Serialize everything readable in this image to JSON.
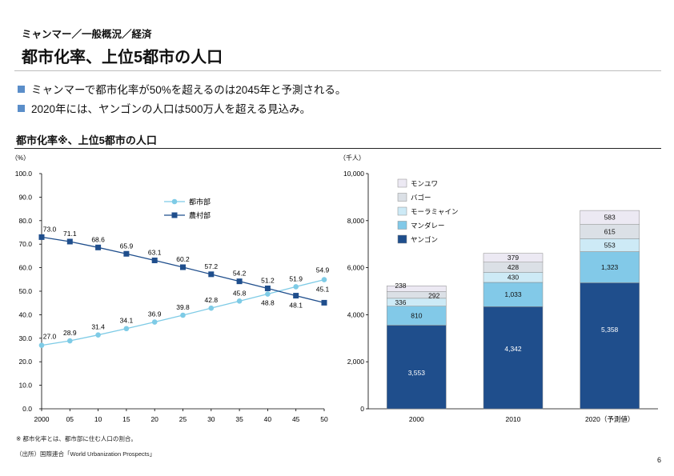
{
  "header": {
    "breadcrumb": "ミャンマー／一般概況／経済",
    "title": "都市化率、上位5都市の人口"
  },
  "bullets": [
    "ミャンマーで都市化率が50%を超えるのは2045年と予測される。",
    "2020年には、ヤンゴンの人口は500万人を超える見込み。"
  ],
  "section_title": "都市化率※、上位5都市の人口",
  "colors": {
    "urban": "#7ecbe6",
    "rural": "#1f4e8c",
    "bullet": "#5b8ec9",
    "yangon": "#1f4e8c",
    "mandalay": "#82c9e8",
    "mawlamyine": "#cdeaf6",
    "bago": "#dbe0e6",
    "monywa": "#ece9f3"
  },
  "chart_data": [
    {
      "type": "line",
      "title": "都市化率",
      "unit_label": "（%）",
      "x": [
        2000,
        2005,
        2010,
        2015,
        2020,
        2025,
        2030,
        2035,
        2040,
        2045,
        2050
      ],
      "xtick_labels": [
        "2000",
        "05",
        "10",
        "15",
        "20",
        "25",
        "30",
        "35",
        "40",
        "45",
        "50"
      ],
      "ylim": [
        0,
        100
      ],
      "ytick_labels": [
        "0.0",
        "10.0",
        "20.0",
        "30.0",
        "40.0",
        "50.0",
        "60.0",
        "70.0",
        "80.0",
        "90.0",
        "100.0"
      ],
      "series": [
        {
          "name": "都市部",
          "values": [
            27.0,
            28.9,
            31.4,
            34.1,
            36.9,
            39.8,
            42.8,
            45.8,
            48.8,
            51.9,
            54.9
          ],
          "labels": [
            "27.0",
            "28.9",
            "31.4",
            "34.1",
            "36.9",
            "39.8",
            "42.8",
            "45.8",
            "48.8",
            "51.9",
            "54.9"
          ]
        },
        {
          "name": "農村部",
          "values": [
            73.0,
            71.1,
            68.6,
            65.9,
            63.1,
            60.2,
            57.2,
            54.2,
            51.2,
            48.1,
            45.1
          ],
          "labels": [
            "73.0",
            "71.1",
            "68.6",
            "65.9",
            "63.1",
            "60.2",
            "57.2",
            "54.2",
            "51.2",
            "48.1",
            "45.1"
          ]
        }
      ],
      "legend_position": "top-right"
    },
    {
      "type": "bar",
      "stacked": true,
      "title": "上位5都市の人口",
      "unit_label": "（千人）",
      "categories": [
        "2000",
        "2010",
        "2020（予測値）"
      ],
      "ylim": [
        0,
        10000
      ],
      "ytick_labels": [
        "0",
        "2,000",
        "4,000",
        "6,000",
        "8,000",
        "10,000"
      ],
      "series": [
        {
          "name": "ヤンゴン",
          "values": [
            3553,
            4342,
            5358
          ],
          "labels": [
            "3,553",
            "4,342",
            "5,358"
          ]
        },
        {
          "name": "マンダレー",
          "values": [
            810,
            1033,
            1323
          ],
          "labels": [
            "810",
            "1,033",
            "1,323"
          ]
        },
        {
          "name": "モーラミャイン",
          "values": [
            336,
            430,
            553
          ],
          "labels": [
            "336",
            "430",
            "553"
          ]
        },
        {
          "name": "バゴー",
          "values": [
            292,
            428,
            615
          ],
          "labels": [
            "292",
            "428",
            "615"
          ]
        },
        {
          "name": "モンユワ",
          "values": [
            238,
            379,
            583
          ],
          "labels": [
            "238",
            "379",
            "583"
          ]
        }
      ],
      "legend_order": [
        "モンユワ",
        "バゴー",
        "モーラミャイン",
        "マンダレー",
        "ヤンゴン"
      ],
      "legend_position": "top-left"
    }
  ],
  "footnotes": {
    "note": "※ 都市化率とは、都市部に住む人口の割合。",
    "source": "（出所）国際連合「World Urbanization Prospects」"
  },
  "page_number": "6"
}
